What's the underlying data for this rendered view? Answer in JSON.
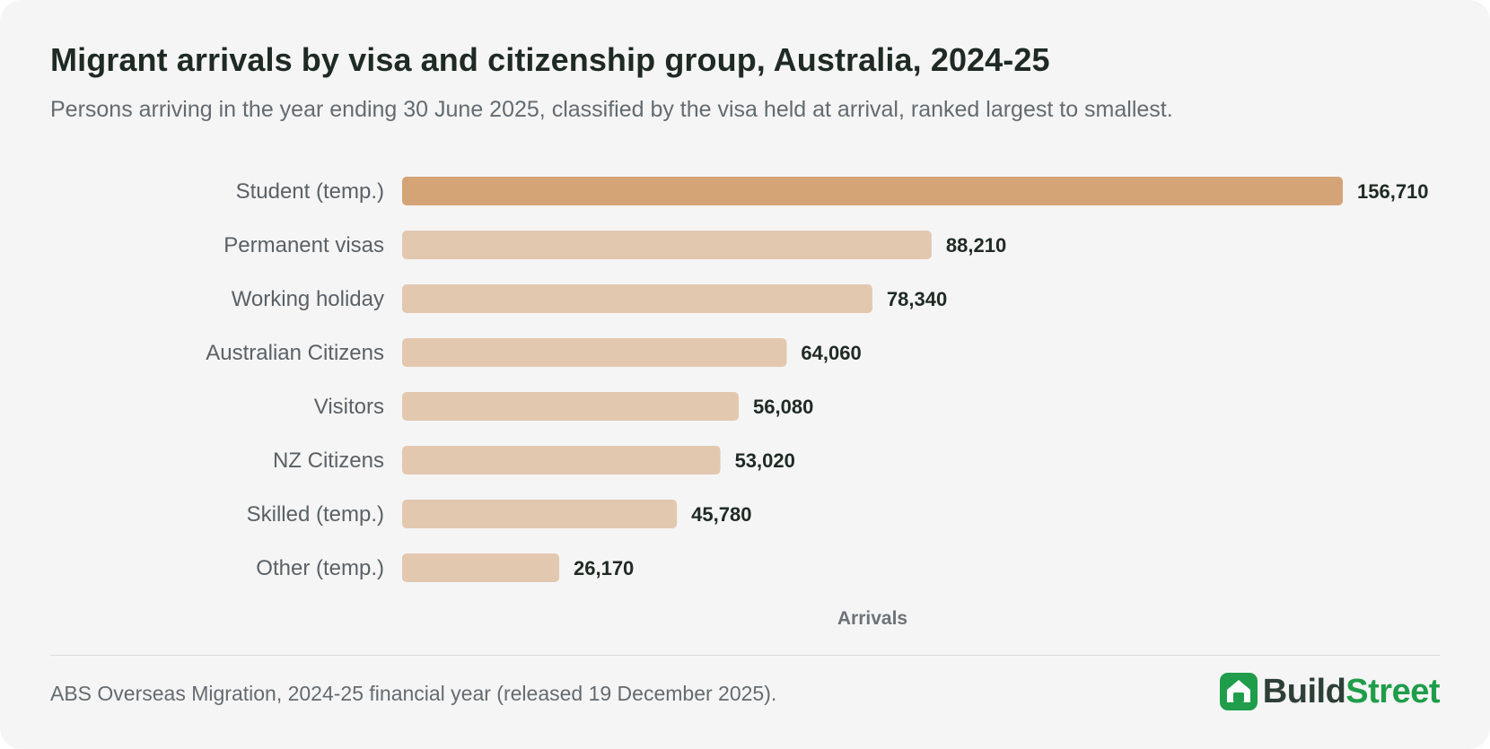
{
  "header": {
    "title": "Migrant arrivals by visa and citizenship group, Australia, 2024-25",
    "subtitle": "Persons arriving in the year ending 30 June 2025, classified by the visa held at arrival, ranked largest to smallest."
  },
  "footer": {
    "source": "ABS Overseas Migration, 2024-25 financial year (released 19 December 2025).",
    "logo_part1": "Build",
    "logo_part2": "Street",
    "logo_icon": "house-icon"
  },
  "colors": {
    "highlight_bar": "#d4a476",
    "bar": "#e3c8b0",
    "logo_green": "#1f9d4a",
    "logo_dark": "#2e3f38"
  },
  "chart_data": {
    "type": "bar",
    "orientation": "horizontal",
    "title": "Migrant arrivals by visa and citizenship group, Australia, 2024-25",
    "subtitle": "Persons arriving in the year ending 30 June 2025, classified by the visa held at arrival, ranked largest to smallest.",
    "xlabel": "Arrivals",
    "ylabel": "",
    "categories": [
      "Student (temp.)",
      "Permanent visas",
      "Working holiday",
      "Australian Citizens",
      "Visitors",
      "NZ Citizens",
      "Skilled (temp.)",
      "Other (temp.)"
    ],
    "values": [
      156710,
      88210,
      78340,
      64060,
      56080,
      53020,
      45780,
      26170
    ],
    "value_labels": [
      "156,710",
      "88,210",
      "78,340",
      "64,060",
      "56,080",
      "53,020",
      "45,780",
      "26,170"
    ],
    "highlight_category": "Student (temp.)",
    "xlim": [
      0,
      156710
    ],
    "grid": false,
    "legend": "none"
  }
}
